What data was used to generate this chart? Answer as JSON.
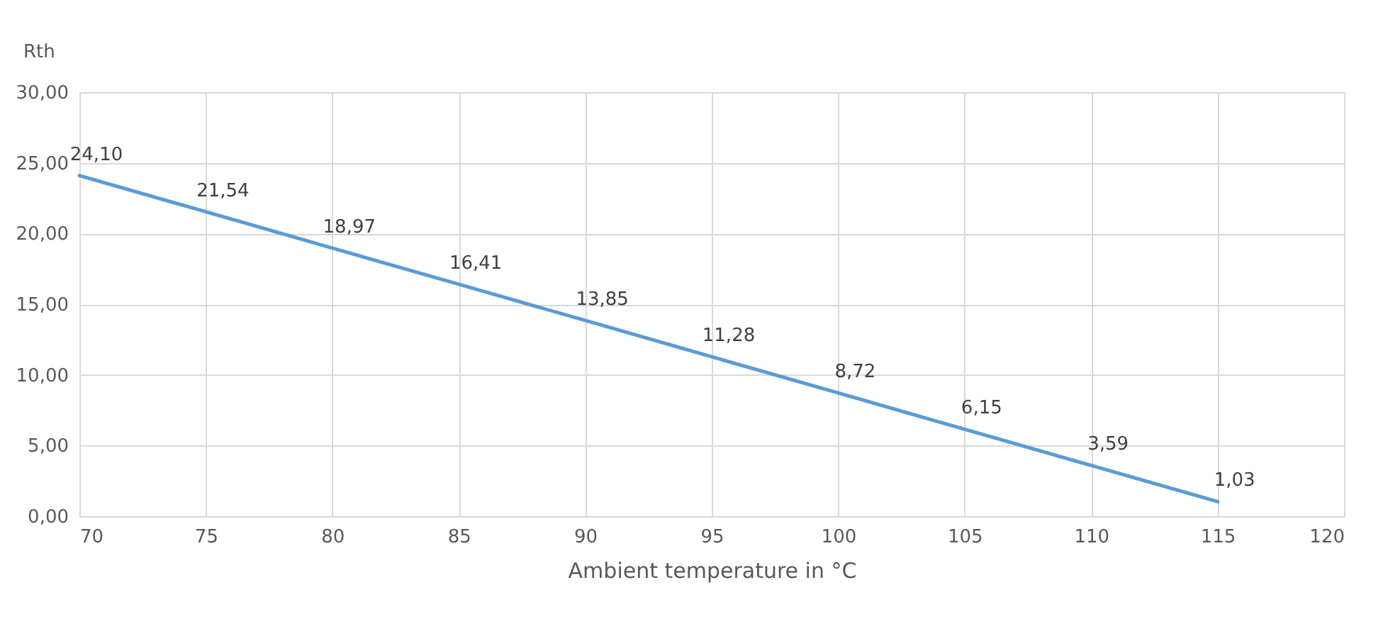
{
  "chart_data": {
    "type": "line",
    "xlabel": "Ambient temperature in °C",
    "ylabel": "Rth",
    "x": [
      70,
      75,
      80,
      85,
      90,
      95,
      100,
      105,
      110,
      115
    ],
    "series": [
      {
        "color": "#5b9bd5",
        "values": [
          24.1,
          21.54,
          18.97,
          16.41,
          13.85,
          11.28,
          8.72,
          6.15,
          3.59,
          1.03
        ],
        "value_labels": [
          "24,10",
          "21,54",
          "18,97",
          "16,41",
          "13,85",
          "11,28",
          "8,72",
          "6,15",
          "3,59",
          "1,03"
        ]
      }
    ],
    "xlim": [
      70,
      120
    ],
    "xticks": [
      70,
      75,
      80,
      85,
      90,
      95,
      100,
      105,
      110,
      115,
      120
    ],
    "ylim": [
      0,
      30
    ],
    "yticks": [
      {
        "value": 0,
        "label": "0,00"
      },
      {
        "value": 5,
        "label": "5,00"
      },
      {
        "value": 10,
        "label": "10,00"
      },
      {
        "value": 15,
        "label": "15,00"
      },
      {
        "value": 20,
        "label": "20,00"
      },
      {
        "value": 25,
        "label": "25,00"
      },
      {
        "value": 30,
        "label": "30,00"
      }
    ],
    "grid": true,
    "marker": "none",
    "line_style": "solid"
  }
}
